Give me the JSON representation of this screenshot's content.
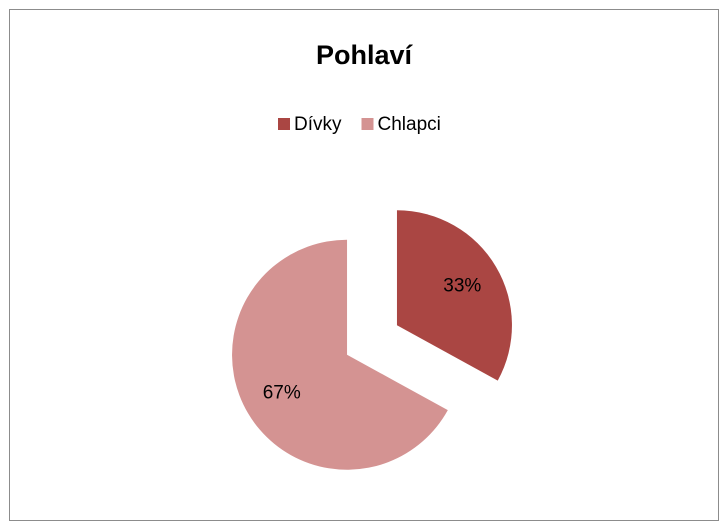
{
  "chart_data": {
    "type": "pie",
    "title": "Pohlaví",
    "categories": [
      "Dívky",
      "Chlapci"
    ],
    "values": [
      33,
      67
    ],
    "value_labels": [
      "33%",
      "67%"
    ],
    "colors": [
      "#aa4643",
      "#d49392"
    ],
    "legend": "top",
    "exploded": true
  }
}
